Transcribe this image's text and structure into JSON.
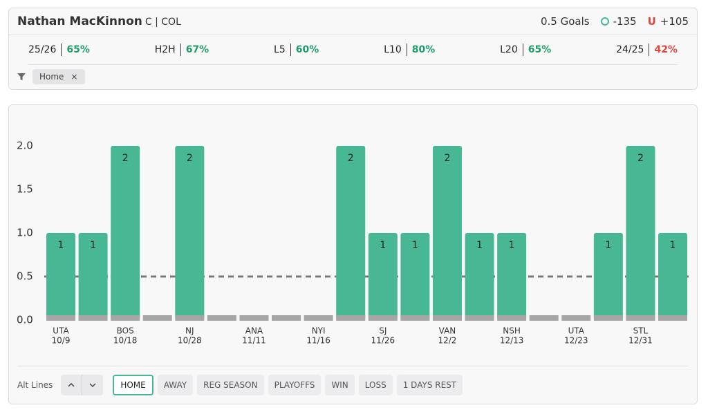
{
  "header": {
    "name": "Nathan MacKinnon",
    "position": "C | COL",
    "line": "0.5 Goals",
    "over_odds": "-135",
    "under_label": "U",
    "under_odds": "+105"
  },
  "stats": [
    {
      "label": "25/26",
      "value": "65%",
      "color": "#1f9d6b"
    },
    {
      "label": "H2H",
      "value": "67%",
      "color": "#1f9d6b"
    },
    {
      "label": "L5",
      "value": "60%",
      "color": "#1f9d6b"
    },
    {
      "label": "L10",
      "value": "80%",
      "color": "#1f9d6b"
    },
    {
      "label": "L20",
      "value": "65%",
      "color": "#1f9d6b"
    },
    {
      "label": "24/25",
      "value": "42%",
      "color": "#e0453a"
    }
  ],
  "filters": [
    {
      "label": "Home",
      "remove": "×"
    }
  ],
  "chart_data": {
    "type": "bar",
    "categories": [
      "UTA",
      null,
      "BOS",
      null,
      "NJ",
      null,
      "ANA",
      null,
      "NYI",
      null,
      "SJ",
      null,
      "VAN",
      null,
      "NSH",
      null,
      "UTA",
      null,
      "STL",
      null
    ],
    "dates": [
      "10/9",
      null,
      "10/18",
      null,
      "10/28",
      null,
      "11/11",
      null,
      "11/16",
      null,
      "11/26",
      null,
      "12/2",
      null,
      "12/13",
      null,
      "12/23",
      null,
      "12/31",
      null
    ],
    "values": [
      1,
      1,
      2,
      0,
      2,
      0,
      0,
      0,
      0,
      2,
      1,
      1,
      2,
      1,
      1,
      0,
      0,
      1,
      2,
      1
    ],
    "color": "#47b893",
    "threshold": 0.5,
    "ylim": [
      0,
      2
    ],
    "yticks": [
      {
        "value": 0,
        "label": "0.0"
      },
      0.5,
      {
        "value": 1,
        "label": "1.0"
      },
      1.5,
      {
        "value": 2,
        "label": "2.0"
      }
    ]
  },
  "controls": {
    "alt_lines": "Alt Lines",
    "buttons": [
      "HOME",
      "AWAY",
      "REG SEASON",
      "PLAYOFFS",
      "WIN",
      "LOSS",
      "1 DAYS REST"
    ],
    "active": 0
  }
}
